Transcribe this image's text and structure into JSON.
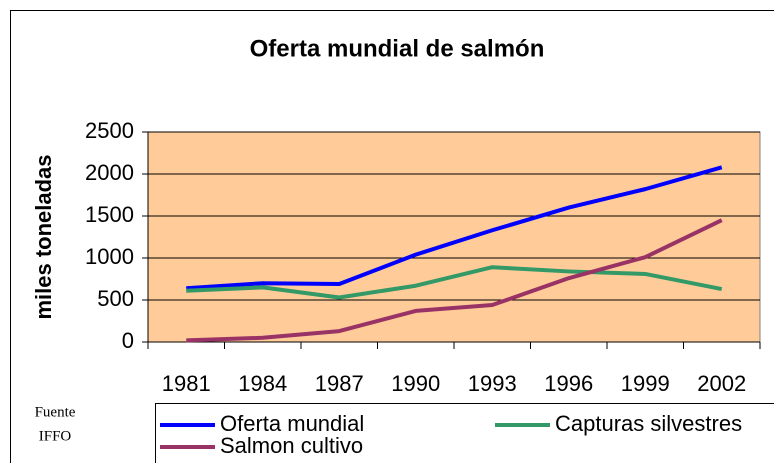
{
  "chart_data": {
    "type": "line",
    "title": "Oferta mundial de salmón",
    "y_label": "miles toneladas",
    "categories": [
      "1981",
      "1984",
      "1987",
      "1990",
      "1993",
      "1996",
      "1999",
      "2002"
    ],
    "series": [
      {
        "name": "Oferta mundial",
        "color": "#0000ff",
        "values": [
          640,
          700,
          690,
          1040,
          1330,
          1600,
          1820,
          2080
        ]
      },
      {
        "name": "Capturas silvestres",
        "color": "#339966",
        "values": [
          610,
          650,
          530,
          670,
          890,
          840,
          810,
          630
        ]
      },
      {
        "name": "Salmon cultivo",
        "color": "#993366",
        "values": [
          20,
          50,
          130,
          370,
          440,
          760,
          1010,
          1450
        ]
      }
    ],
    "ylim": [
      0,
      2500
    ],
    "yticks": [
      0,
      500,
      1000,
      1500,
      2000,
      2500
    ],
    "grid": true,
    "plot_background": "#ffcc99",
    "source": [
      "Fuente",
      "IFFO"
    ]
  }
}
